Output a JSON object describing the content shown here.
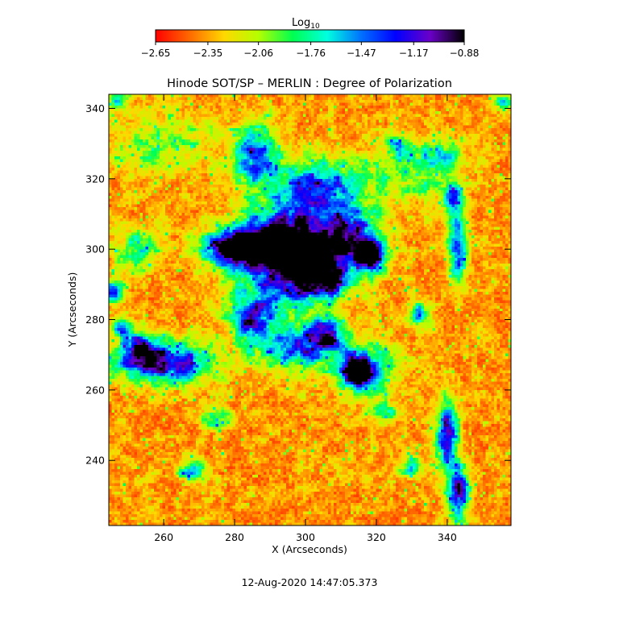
{
  "chart_data": {
    "type": "heatmap",
    "title": "Hinode SOT/SP – MERLIN : Degree of Polarization",
    "xlabel": "X (Arcseconds)",
    "ylabel": "Y (Arcseconds)",
    "xlim": [
      244.5,
      358
    ],
    "ylim": [
      221.5,
      344
    ],
    "x_ticks": [
      260,
      280,
      300,
      320,
      340
    ],
    "y_ticks": [
      240,
      260,
      280,
      300,
      320,
      340
    ],
    "colorbar": {
      "label_main": "Log",
      "label_sub": "10",
      "range": [
        -2.65,
        -0.88
      ],
      "tick_values": [
        -2.65,
        -2.35,
        -2.06,
        -1.76,
        -1.47,
        -1.17,
        -0.88
      ],
      "tick_labels": [
        "−2.65",
        "−2.35",
        "−2.06",
        "−1.76",
        "−1.47",
        "−1.17",
        "−0.88"
      ],
      "colors": [
        "#ff0000",
        "#ff6a00",
        "#ffd800",
        "#b4ff00",
        "#00ff50",
        "#00ffe0",
        "#0070ff",
        "#0000ff",
        "#6a00c8",
        "#000000"
      ]
    },
    "features": [
      {
        "x": 290,
        "y": 302,
        "sx": 9,
        "sy": 4,
        "amp": 1.3
      },
      {
        "x": 280,
        "y": 300,
        "sx": 6,
        "sy": 3,
        "amp": 1.0
      },
      {
        "x": 300,
        "y": 296,
        "sx": 7,
        "sy": 4,
        "amp": 1.0
      },
      {
        "x": 294,
        "y": 292,
        "sx": 10,
        "sy": 8,
        "amp": 0.7
      },
      {
        "x": 312,
        "y": 304,
        "sx": 6,
        "sy": 5,
        "amp": 0.9
      },
      {
        "x": 318,
        "y": 298,
        "sx": 3,
        "sy": 3,
        "amp": 1.1
      },
      {
        "x": 306,
        "y": 291,
        "sx": 4,
        "sy": 3,
        "amp": 0.8
      },
      {
        "x": 315,
        "y": 265,
        "sx": 2.8,
        "sy": 2.4,
        "amp": 1.8
      },
      {
        "x": 317,
        "y": 266,
        "sx": 6,
        "sy": 5,
        "amp": 0.6
      },
      {
        "x": 260,
        "y": 268,
        "sx": 9,
        "sy": 4,
        "amp": 1.0
      },
      {
        "x": 253,
        "y": 272,
        "sx": 3,
        "sy": 3,
        "amp": 0.9
      },
      {
        "x": 298,
        "y": 272,
        "sx": 8,
        "sy": 4,
        "amp": 0.8
      },
      {
        "x": 285,
        "y": 280,
        "sx": 4,
        "sy": 4,
        "amp": 0.8
      },
      {
        "x": 306,
        "y": 276,
        "sx": 3,
        "sy": 3,
        "amp": 0.8
      },
      {
        "x": 286,
        "y": 327,
        "sx": 4,
        "sy": 6,
        "amp": 0.8
      },
      {
        "x": 305,
        "y": 318,
        "sx": 8,
        "sy": 5,
        "amp": 0.6
      },
      {
        "x": 299,
        "y": 310,
        "sx": 10,
        "sy": 9,
        "amp": 0.5
      },
      {
        "x": 340,
        "y": 247,
        "sx": 2,
        "sy": 7,
        "amp": 1.0
      },
      {
        "x": 343,
        "y": 231,
        "sx": 2,
        "sy": 5,
        "amp": 1.0
      },
      {
        "x": 343,
        "y": 301,
        "sx": 2,
        "sy": 7,
        "amp": 0.8
      },
      {
        "x": 342,
        "y": 314,
        "sx": 1.8,
        "sy": 4,
        "amp": 0.7
      },
      {
        "x": 332,
        "y": 282,
        "sx": 2,
        "sy": 2,
        "amp": 0.7
      },
      {
        "x": 246,
        "y": 288,
        "sx": 2,
        "sy": 2,
        "amp": 0.9
      },
      {
        "x": 248,
        "y": 278,
        "sx": 2,
        "sy": 2,
        "amp": 0.7
      },
      {
        "x": 253,
        "y": 300,
        "sx": 4,
        "sy": 4,
        "amp": 0.5
      },
      {
        "x": 268,
        "y": 237,
        "sx": 2.5,
        "sy": 2,
        "amp": 0.7
      },
      {
        "x": 330,
        "y": 238,
        "sx": 2,
        "sy": 2,
        "amp": 0.6
      },
      {
        "x": 322,
        "y": 254,
        "sx": 3,
        "sy": 2,
        "amp": 0.5
      },
      {
        "x": 275,
        "y": 252,
        "sx": 3,
        "sy": 2,
        "amp": 0.5
      },
      {
        "x": 338,
        "y": 327,
        "sx": 4,
        "sy": 3,
        "amp": 0.4
      },
      {
        "x": 330,
        "y": 322,
        "sx": 8,
        "sy": 5,
        "amp": 0.4
      },
      {
        "x": 260,
        "y": 330,
        "sx": 10,
        "sy": 6,
        "amp": 0.3
      },
      {
        "x": 326,
        "y": 330,
        "sx": 2,
        "sy": 2,
        "amp": 0.5
      },
      {
        "x": 247,
        "y": 342,
        "sx": 2,
        "sy": 2,
        "amp": 0.6
      },
      {
        "x": 356,
        "y": 342,
        "sx": 1.5,
        "sy": 1.5,
        "amp": 0.6
      }
    ]
  },
  "footer": {
    "timestamp": "12-Aug-2020 14:47:05.373"
  }
}
